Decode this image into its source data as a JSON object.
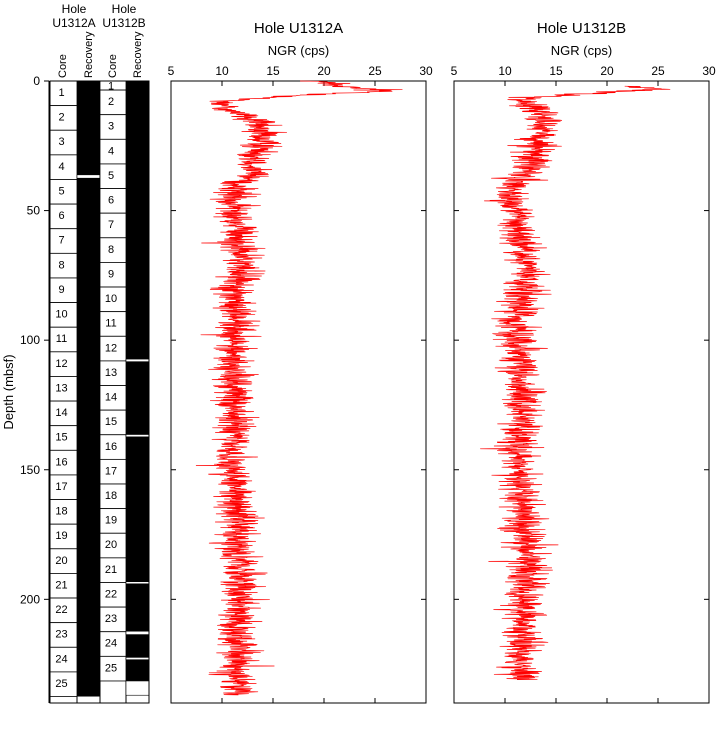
{
  "chart_data": {
    "type": "line",
    "y_axis": {
      "label": "Depth (mbsf)",
      "range": [
        0,
        240
      ],
      "ticks": [
        0,
        50,
        100,
        150,
        200
      ],
      "reversed": true
    },
    "core_columns": {
      "hole_a": {
        "title_line1": "Hole",
        "title_line2": "U1312A"
      },
      "hole_b": {
        "title_line1": "Hole",
        "title_line2": "U1312B"
      },
      "core_label": "Core",
      "recovery_label": "Recovery",
      "hole_a_cores": [
        "1",
        "2",
        "3",
        "4",
        "5",
        "6",
        "7",
        "8",
        "9",
        "10",
        "11",
        "12",
        "13",
        "14",
        "15",
        "16",
        "17",
        "18",
        "19",
        "20",
        "21",
        "22",
        "23",
        "24",
        "25"
      ],
      "hole_a_core_tops": [
        0,
        9.5,
        19,
        28.5,
        38,
        47.5,
        57,
        66.5,
        76,
        85.5,
        95,
        104.5,
        114,
        123.5,
        133,
        142.5,
        152,
        161.5,
        171,
        180.5,
        190,
        199.5,
        209,
        218.5,
        228
      ],
      "hole_a_bottom": 237.5,
      "hole_a_recovery_gaps": [
        [
          36.2,
          37.5
        ]
      ],
      "hole_b_cores": [
        "1",
        "2",
        "3",
        "4",
        "5",
        "6",
        "7",
        "8",
        "9",
        "10",
        "11",
        "12",
        "13",
        "14",
        "15",
        "16",
        "17",
        "18",
        "19",
        "20",
        "21",
        "22",
        "23",
        "24",
        "25"
      ],
      "hole_b_core_tops": [
        0,
        3.5,
        13,
        22.5,
        32,
        41.5,
        51,
        60.5,
        70,
        79.5,
        89,
        98.5,
        108,
        117.5,
        127,
        136.5,
        146,
        155.5,
        165,
        174.5,
        184,
        193.5,
        203,
        212.5,
        222
      ],
      "hole_b_bottom": 231.5,
      "hole_b_recovery_gaps": [
        [
          107.3,
          108.3
        ],
        [
          136.4,
          137.3
        ],
        [
          193.2,
          194.0
        ],
        [
          212.3,
          213.6
        ],
        [
          222.4,
          223.3
        ],
        [
          231.5,
          237.0
        ]
      ]
    },
    "panels": [
      {
        "title": "Hole U1312A",
        "xlabel": "NGR (cps)",
        "xlim": [
          5,
          30
        ],
        "xticks": [
          5,
          10,
          15,
          20,
          25,
          30
        ],
        "series_color": "#ff0000",
        "depth_range": [
          0,
          237
        ],
        "depth_profile": [
          [
            0,
            19.5
          ],
          [
            2,
            21
          ],
          [
            3,
            24
          ],
          [
            4,
            26
          ],
          [
            5,
            21
          ],
          [
            6,
            16
          ],
          [
            7,
            12.5
          ],
          [
            8,
            10.5
          ],
          [
            9,
            10
          ],
          [
            10,
            10
          ],
          [
            12,
            11.5
          ],
          [
            15,
            13
          ],
          [
            20,
            14
          ],
          [
            25,
            13.8
          ],
          [
            30,
            13.5
          ],
          [
            35,
            13.2
          ],
          [
            38,
            12.5
          ],
          [
            40,
            11.5
          ],
          [
            45,
            11
          ],
          [
            50,
            11.2
          ],
          [
            55,
            11.5
          ],
          [
            60,
            11.5
          ],
          [
            65,
            11.8
          ],
          [
            70,
            12
          ],
          [
            75,
            12
          ],
          [
            80,
            11.5
          ],
          [
            85,
            11
          ],
          [
            90,
            11.5
          ],
          [
            100,
            11.2
          ],
          [
            110,
            11
          ],
          [
            120,
            11.2
          ],
          [
            130,
            11.3
          ],
          [
            140,
            11
          ],
          [
            150,
            11
          ],
          [
            160,
            11.2
          ],
          [
            170,
            11.8
          ],
          [
            180,
            11.5
          ],
          [
            190,
            12
          ],
          [
            200,
            12
          ],
          [
            210,
            11.6
          ],
          [
            220,
            11.4
          ],
          [
            230,
            11.6
          ],
          [
            237,
            11.5
          ]
        ],
        "noise_cps": 1.0
      },
      {
        "title": "Hole U1312B",
        "xlabel": "NGR (cps)",
        "xlim": [
          5,
          30
        ],
        "xticks": [
          5,
          10,
          15,
          20,
          25,
          30
        ],
        "series_color": "#ff0000",
        "depth_range": [
          2,
          231
        ],
        "depth_profile": [
          [
            2,
            22
          ],
          [
            3,
            25
          ],
          [
            4,
            21
          ],
          [
            5,
            18
          ],
          [
            6,
            14
          ],
          [
            8,
            12
          ],
          [
            10,
            13
          ],
          [
            15,
            13.8
          ],
          [
            20,
            13.5
          ],
          [
            25,
            13
          ],
          [
            30,
            12.8
          ],
          [
            35,
            12.3
          ],
          [
            38,
            11.5
          ],
          [
            40,
            10.8
          ],
          [
            45,
            10.6
          ],
          [
            50,
            10.8
          ],
          [
            55,
            11
          ],
          [
            60,
            11.5
          ],
          [
            65,
            11.8
          ],
          [
            70,
            12
          ],
          [
            75,
            12.2
          ],
          [
            80,
            12
          ],
          [
            85,
            11.5
          ],
          [
            90,
            11.2
          ],
          [
            100,
            11.2
          ],
          [
            110,
            11.5
          ],
          [
            120,
            11.8
          ],
          [
            130,
            11.6
          ],
          [
            140,
            11.3
          ],
          [
            150,
            11.5
          ],
          [
            160,
            11.4
          ],
          [
            170,
            11.8
          ],
          [
            180,
            12
          ],
          [
            190,
            12.3
          ],
          [
            200,
            12
          ],
          [
            210,
            11.8
          ],
          [
            220,
            11.6
          ],
          [
            231,
            11.7
          ]
        ],
        "noise_cps": 1.0
      }
    ]
  }
}
